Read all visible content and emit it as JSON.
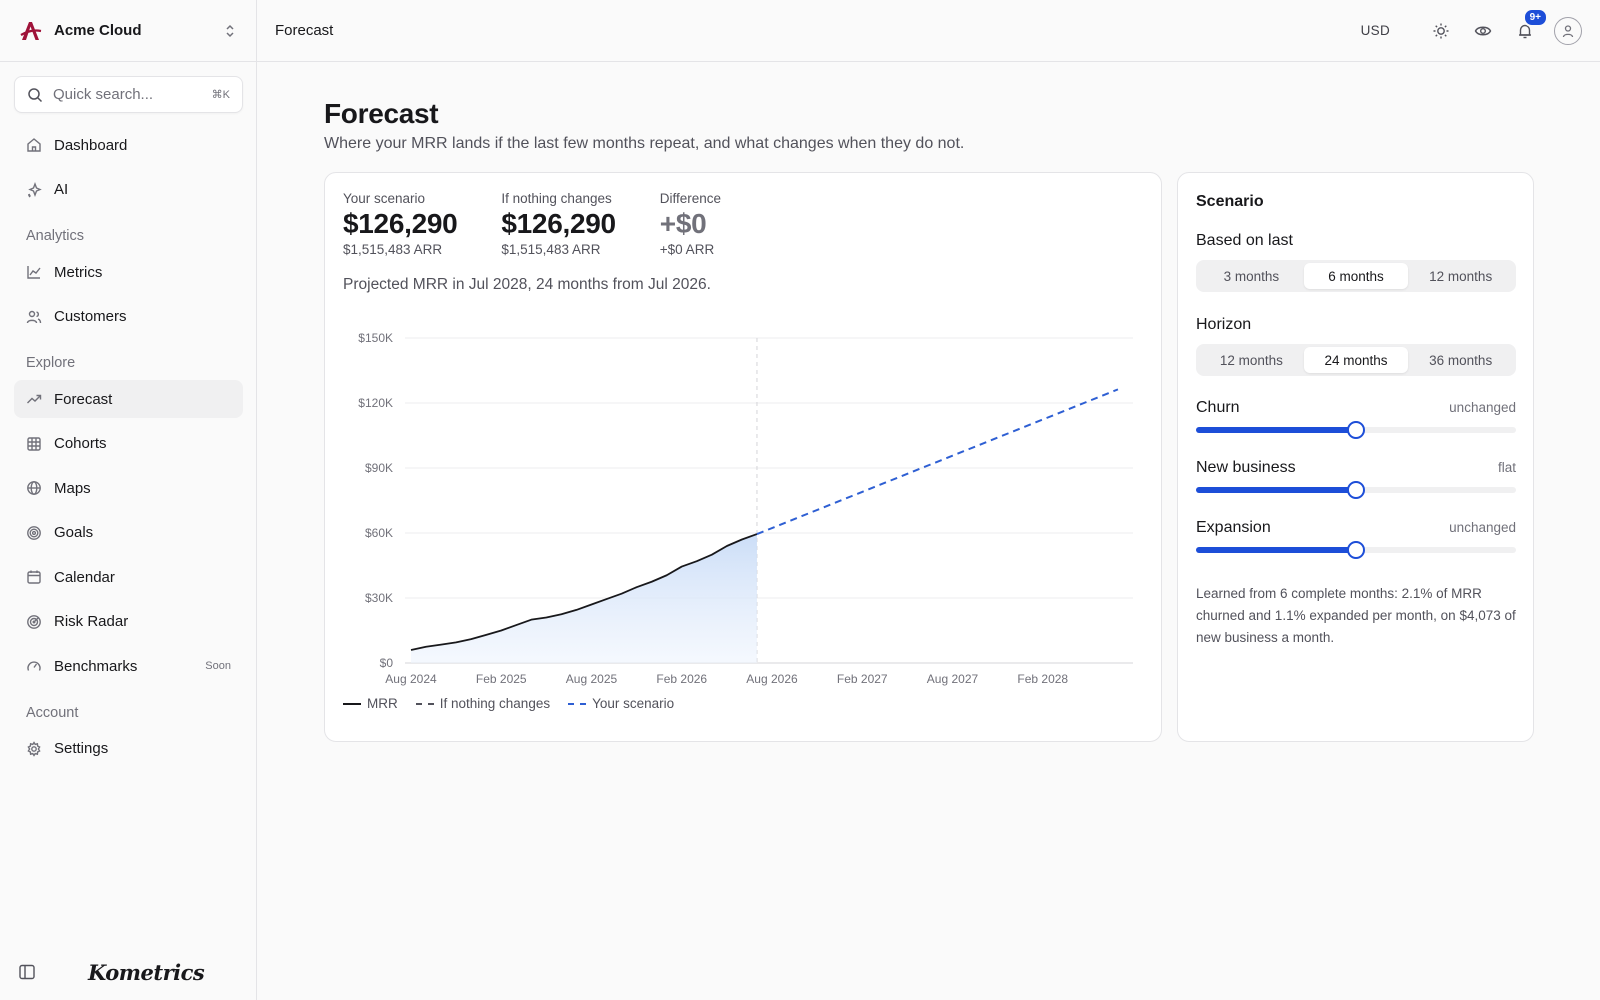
{
  "org": {
    "name": "Acme Cloud"
  },
  "search": {
    "placeholder": "Quick search...",
    "shortcut": "⌘K"
  },
  "nav": {
    "top": [
      {
        "label": "Dashboard",
        "icon": "home-icon"
      },
      {
        "label": "AI",
        "icon": "sparkles-icon"
      }
    ],
    "sections": [
      {
        "title": "Analytics",
        "items": [
          {
            "label": "Metrics",
            "icon": "line-chart-icon"
          },
          {
            "label": "Customers",
            "icon": "users-icon"
          }
        ]
      },
      {
        "title": "Explore",
        "items": [
          {
            "label": "Forecast",
            "icon": "trending-up-icon",
            "active": true
          },
          {
            "label": "Cohorts",
            "icon": "grid-icon"
          },
          {
            "label": "Maps",
            "icon": "globe-icon"
          },
          {
            "label": "Goals",
            "icon": "target-icon"
          },
          {
            "label": "Calendar",
            "icon": "calendar-icon"
          },
          {
            "label": "Risk Radar",
            "icon": "radar-icon"
          },
          {
            "label": "Benchmarks",
            "icon": "gauge-icon",
            "badge": "Soon"
          }
        ]
      },
      {
        "title": "Account",
        "items": [
          {
            "label": "Settings",
            "icon": "gear-icon"
          }
        ]
      }
    ]
  },
  "brand": "Kometrics",
  "topbar": {
    "breadcrumb": "Forecast",
    "currency": "USD",
    "notifications_badge": "9+"
  },
  "page": {
    "title": "Forecast",
    "subtitle": "Where your MRR lands if the last few months repeat, and what changes when they do not."
  },
  "kpis": [
    {
      "label": "Your scenario",
      "value": "$126,290",
      "sub": "$1,515,483 ARR"
    },
    {
      "label": "If nothing changes",
      "value": "$126,290",
      "sub": "$1,515,483 ARR"
    },
    {
      "label": "Difference",
      "value": "+$0",
      "sub": "+$0 ARR"
    }
  ],
  "projection_text": "Projected MRR in Jul 2028, 24 months from Jul 2026.",
  "legend": [
    {
      "label": "MRR",
      "style": "solid",
      "color": "#18181b"
    },
    {
      "label": "If nothing changes",
      "style": "dashed",
      "color": "#52525b"
    },
    {
      "label": "Your scenario",
      "style": "dashed",
      "color": "#2e5fd3"
    }
  ],
  "chart_data": {
    "type": "line",
    "y_ticks": [
      "$0",
      "$30K",
      "$60K",
      "$90K",
      "$120K",
      "$150K"
    ],
    "ylim": [
      0,
      150000
    ],
    "x_ticks": [
      "Aug 2024",
      "Feb 2025",
      "Aug 2025",
      "Feb 2026",
      "Aug 2026",
      "Feb 2027",
      "Aug 2027",
      "Feb 2028"
    ],
    "grid": true,
    "series": [
      {
        "name": "MRR",
        "x": [
          "2024-08",
          "2024-09",
          "2024-10",
          "2024-11",
          "2024-12",
          "2025-01",
          "2025-02",
          "2025-03",
          "2025-04",
          "2025-05",
          "2025-06",
          "2025-07",
          "2025-08",
          "2025-09",
          "2025-10",
          "2025-11",
          "2025-12",
          "2026-01",
          "2026-02",
          "2026-03",
          "2026-04",
          "2026-05",
          "2026-06",
          "2026-07"
        ],
        "values": [
          6000,
          7500,
          8500,
          9500,
          11000,
          13000,
          15000,
          17500,
          20000,
          21000,
          22500,
          24500,
          27000,
          29500,
          32000,
          35000,
          37500,
          40500,
          44500,
          47000,
          50000,
          54000,
          57000,
          59500
        ]
      },
      {
        "name": "Your scenario",
        "x": [
          "2026-07",
          "2028-07"
        ],
        "values": [
          59500,
          126290
        ]
      }
    ],
    "forecast_start": "Jul 2026"
  },
  "scenario": {
    "title": "Scenario",
    "based_on": {
      "label": "Based on last",
      "options": [
        "3 months",
        "6 months",
        "12 months"
      ],
      "selected": 1
    },
    "horizon": {
      "label": "Horizon",
      "options": [
        "12 months",
        "24 months",
        "36 months"
      ],
      "selected": 1
    },
    "sliders": [
      {
        "name": "Churn",
        "state": "unchanged",
        "level": 0.5
      },
      {
        "name": "New business",
        "state": "flat",
        "level": 0.5
      },
      {
        "name": "Expansion",
        "state": "unchanged",
        "level": 0.5
      }
    ],
    "note": "Learned from 6 complete months: 2.1% of MRR churned and 1.1% expanded per month, on $4,073 of new business a month."
  },
  "colors": {
    "accent": "#1d4ed8",
    "forecast_line": "#2e5fd3",
    "area_fill": "#dbe8fb",
    "brand_logo": "#9f1239"
  }
}
